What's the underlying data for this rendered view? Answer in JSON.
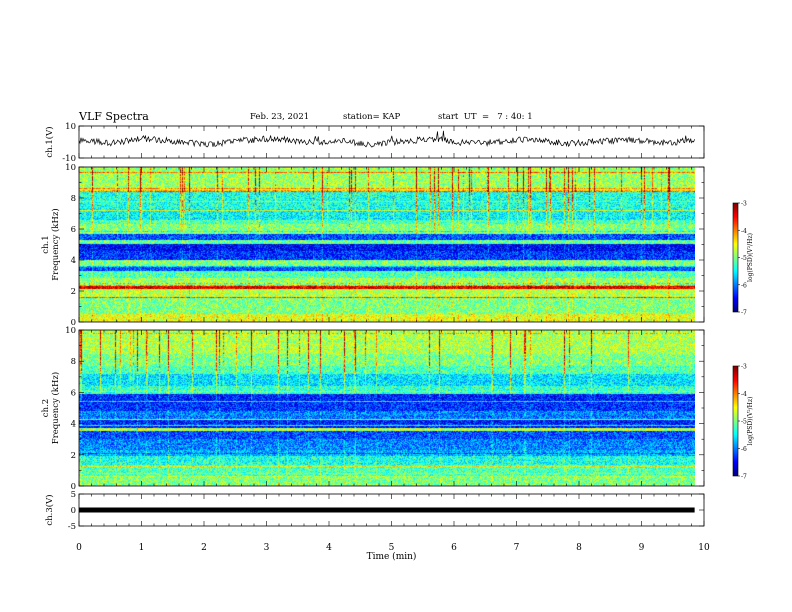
{
  "header": {
    "title": "VLF Spectra",
    "date": "Feb. 23, 2021",
    "station": "station= KAP",
    "start_ut": "start  UT  =   7 : 40: 1"
  },
  "colors": {
    "spec_low": "#0000cc",
    "spec_mid": "#00ff80",
    "spec_high": "#ff0000",
    "waveform": "#000000"
  },
  "chart_data": [
    {
      "type": "line",
      "panel": "ch1-waveform",
      "ylabel": "ch.1(V)",
      "ylim": [
        -10,
        10
      ],
      "ytick_labels": [
        "10",
        "-10"
      ],
      "xlim": [
        0,
        10
      ],
      "series": [
        {
          "values": [
            1.5,
            -0.6,
            2.2,
            0.4,
            -1.8,
            0.9,
            2.5,
            -0.3,
            1.1,
            -2.0,
            0.7,
            1.9,
            -0.9,
            0.2,
            2.1,
            -1.2,
            0.5,
            1.4,
            -0.4,
            0.8
          ]
        }
      ]
    },
    {
      "type": "heatmap",
      "panel": "ch1-spectrogram",
      "ylabel": "ch.1",
      "ylabel2": "Frequency (kHz)",
      "ylim": [
        0,
        10
      ],
      "ytick_labels": [
        "0",
        "2",
        "4",
        "6",
        "8",
        "10"
      ],
      "xlim": [
        0,
        9.85
      ],
      "z_range": [
        -7,
        -3
      ],
      "colorbar_label": "log(PSD)(V²/Hz)",
      "colorbar_ticks": [
        "-3",
        "-4",
        "-5",
        "-6",
        "-7"
      ],
      "bands_kHz": [
        [
          0.0,
          0.5,
          -4.6
        ],
        [
          0.5,
          1.5,
          -5.0
        ],
        [
          1.5,
          2.1,
          -4.8
        ],
        [
          2.1,
          2.3,
          -3.4
        ],
        [
          2.3,
          2.8,
          -4.9
        ],
        [
          2.8,
          3.3,
          -5.2
        ],
        [
          3.3,
          3.6,
          -6.2
        ],
        [
          3.6,
          4.0,
          -5.0
        ],
        [
          4.0,
          4.6,
          -6.3
        ],
        [
          4.6,
          5.0,
          -6.5
        ],
        [
          5.0,
          5.3,
          -5.1
        ],
        [
          5.3,
          5.7,
          -6.2
        ],
        [
          5.7,
          6.3,
          -5.0
        ],
        [
          6.3,
          6.6,
          -5.2
        ],
        [
          6.6,
          7.3,
          -5.5
        ],
        [
          7.3,
          8.4,
          -5.4
        ],
        [
          8.4,
          10.0,
          -4.9
        ]
      ]
    },
    {
      "type": "heatmap",
      "panel": "ch2-spectrogram",
      "ylabel": "ch.2",
      "ylabel2": "Frequency (kHz)",
      "ylim": [
        0,
        10
      ],
      "ytick_labels": [
        "0",
        "2",
        "4",
        "6",
        "8",
        "10"
      ],
      "xlim": [
        0,
        9.85
      ],
      "z_range": [
        -7,
        -3
      ],
      "colorbar_label": "log(PSD)(V²/Hz)",
      "colorbar_ticks": [
        "-3",
        "-4",
        "-5",
        "-6",
        "-7"
      ],
      "bands_kHz": [
        [
          0.0,
          0.6,
          -5.0
        ],
        [
          0.6,
          1.3,
          -5.2
        ],
        [
          1.3,
          1.9,
          -5.4
        ],
        [
          1.9,
          2.3,
          -5.8
        ],
        [
          2.3,
          3.0,
          -6.0
        ],
        [
          3.0,
          3.5,
          -6.2
        ],
        [
          3.5,
          3.7,
          -4.8
        ],
        [
          3.7,
          4.2,
          -6.4
        ],
        [
          4.2,
          4.8,
          -6.0
        ],
        [
          4.8,
          5.3,
          -6.3
        ],
        [
          5.3,
          5.9,
          -6.4
        ],
        [
          5.9,
          6.4,
          -5.3
        ],
        [
          6.4,
          7.2,
          -5.6
        ],
        [
          7.2,
          7.7,
          -5.2
        ],
        [
          7.7,
          8.5,
          -5.0
        ],
        [
          8.5,
          10.0,
          -4.8
        ]
      ]
    },
    {
      "type": "line",
      "panel": "ch3-waveform",
      "ylabel": "ch.3(V)",
      "ylim": [
        -5,
        5
      ],
      "ytick_labels": [
        "5",
        "0",
        "-5"
      ],
      "xlim": [
        0,
        10
      ],
      "xlabel": "Time (min)",
      "xtick_labels": [
        "0",
        "1",
        "2",
        "3",
        "4",
        "5",
        "6",
        "7",
        "8",
        "9",
        "10"
      ],
      "series": [
        {
          "values": [
            0,
            0,
            0,
            0,
            0,
            0,
            0,
            0,
            0,
            0
          ]
        }
      ]
    }
  ]
}
